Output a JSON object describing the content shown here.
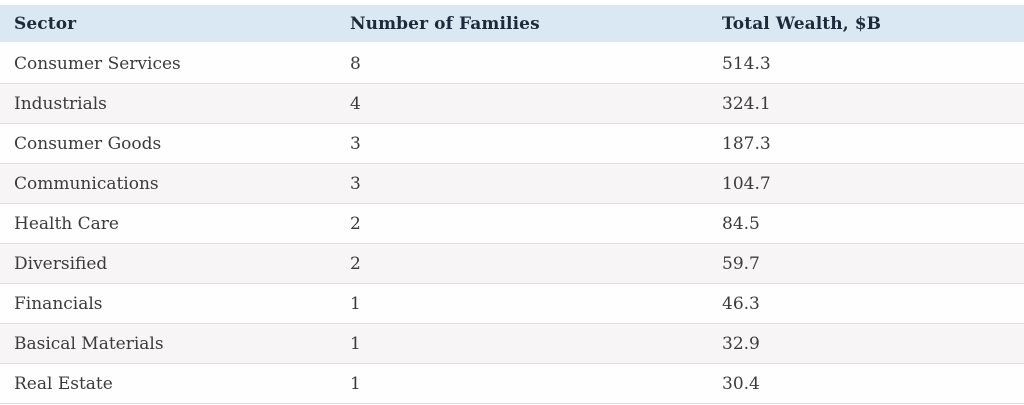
{
  "colors": {
    "page_bg": "#ffffff",
    "header_bg": "#d9e8f2",
    "header_text": "#1c2b39",
    "row_text": "#3b3b3b",
    "row_bg": "#fefefe",
    "row_alt_bg": "#f7f5f5",
    "separator": "#e0dfdf"
  },
  "table": {
    "columns": [
      "Sector",
      "Number of Families",
      "Total Wealth, $B"
    ],
    "rows": [
      {
        "sector": "Consumer Services",
        "families": "8",
        "wealth": "514.3"
      },
      {
        "sector": "Industrials",
        "families": "4",
        "wealth": "324.1"
      },
      {
        "sector": "Consumer Goods",
        "families": "3",
        "wealth": "187.3"
      },
      {
        "sector": "Communications",
        "families": "3",
        "wealth": "104.7"
      },
      {
        "sector": "Health Care",
        "families": "2",
        "wealth": "84.5"
      },
      {
        "sector": "Diversified",
        "families": "2",
        "wealth": "59.7"
      },
      {
        "sector": "Financials",
        "families": "1",
        "wealth": "46.3"
      },
      {
        "sector": "Basical Materials",
        "families": "1",
        "wealth": "32.9"
      },
      {
        "sector": "Real Estate",
        "families": "1",
        "wealth": "30.4"
      }
    ]
  },
  "chart_data": {
    "type": "table",
    "title": "",
    "columns": [
      "Sector",
      "Number of Families",
      "Total Wealth, $B"
    ],
    "rows": [
      [
        "Consumer Services",
        8,
        514.3
      ],
      [
        "Industrials",
        4,
        324.1
      ],
      [
        "Consumer Goods",
        3,
        187.3
      ],
      [
        "Communications",
        3,
        104.7
      ],
      [
        "Health Care",
        2,
        84.5
      ],
      [
        "Diversified",
        2,
        59.7
      ],
      [
        "Financials",
        1,
        46.3
      ],
      [
        "Basical Materials",
        1,
        32.9
      ],
      [
        "Real Estate",
        1,
        30.4
      ]
    ],
    "layout_hints": {
      "header_background": "#d9e8f2",
      "zebra_striping": true,
      "grid": "horizontal-separators-only"
    }
  }
}
